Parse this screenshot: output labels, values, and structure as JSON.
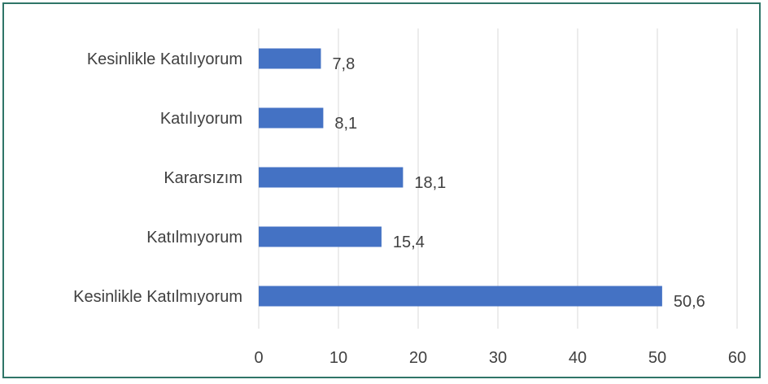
{
  "chart_data": {
    "type": "bar",
    "orientation": "horizontal",
    "categories": [
      "Kesinlikle Katılıyorum",
      "Katılıyorum",
      "Kararsızım",
      "Katılmıyorum",
      "Kesinlikle Katılmıyorum"
    ],
    "values": [
      7.8,
      8.1,
      18.1,
      15.4,
      50.6
    ],
    "data_labels": [
      "7,8",
      "8,1",
      "18,1",
      "15,4",
      "50,6"
    ],
    "x_ticks": [
      "0",
      "10",
      "20",
      "30",
      "40",
      "50",
      "60"
    ],
    "xlim": [
      0,
      60
    ],
    "title": "",
    "xlabel": "",
    "ylabel": "",
    "grid": "vertical",
    "legend": "none",
    "colors": {
      "bar": "#4472c4",
      "grid": "#d9d9d9",
      "frame": "#2f7568",
      "text": "#404040"
    }
  }
}
